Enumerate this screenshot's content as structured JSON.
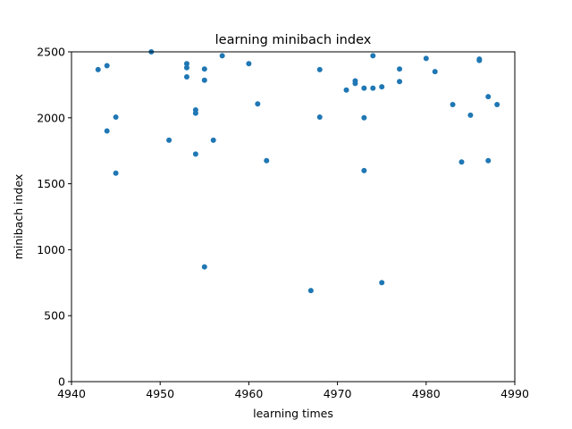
{
  "chart_data": {
    "type": "scatter",
    "title": "learning minibach index",
    "xlabel": "learning times",
    "ylabel": "minibach index",
    "xlim": [
      4940,
      4990
    ],
    "ylim": [
      0,
      2500
    ],
    "xticks": [
      4940,
      4950,
      4960,
      4970,
      4980,
      4990
    ],
    "yticks": [
      0,
      500,
      1000,
      1500,
      2000,
      2500
    ],
    "grid": false,
    "marker_color": "#1f77b4",
    "points": [
      {
        "x": 4943,
        "y": 2365
      },
      {
        "x": 4944,
        "y": 2395
      },
      {
        "x": 4944,
        "y": 1900
      },
      {
        "x": 4945,
        "y": 2005
      },
      {
        "x": 4945,
        "y": 1580
      },
      {
        "x": 4949,
        "y": 2500
      },
      {
        "x": 4951,
        "y": 1830
      },
      {
        "x": 4953,
        "y": 2410
      },
      {
        "x": 4953,
        "y": 2380
      },
      {
        "x": 4953,
        "y": 2310
      },
      {
        "x": 4954,
        "y": 2060
      },
      {
        "x": 4954,
        "y": 2035
      },
      {
        "x": 4954,
        "y": 1725
      },
      {
        "x": 4955,
        "y": 2370
      },
      {
        "x": 4955,
        "y": 2285
      },
      {
        "x": 4955,
        "y": 870
      },
      {
        "x": 4956,
        "y": 1830
      },
      {
        "x": 4957,
        "y": 2470
      },
      {
        "x": 4960,
        "y": 2410
      },
      {
        "x": 4961,
        "y": 2105
      },
      {
        "x": 4962,
        "y": 1675
      },
      {
        "x": 4967,
        "y": 690
      },
      {
        "x": 4968,
        "y": 2365
      },
      {
        "x": 4968,
        "y": 2005
      },
      {
        "x": 4971,
        "y": 2210
      },
      {
        "x": 4972,
        "y": 2280
      },
      {
        "x": 4972,
        "y": 2260
      },
      {
        "x": 4973,
        "y": 2225
      },
      {
        "x": 4973,
        "y": 2000
      },
      {
        "x": 4973,
        "y": 1600
      },
      {
        "x": 4974,
        "y": 2470
      },
      {
        "x": 4974,
        "y": 2225
      },
      {
        "x": 4975,
        "y": 2235
      },
      {
        "x": 4975,
        "y": 750
      },
      {
        "x": 4977,
        "y": 2370
      },
      {
        "x": 4977,
        "y": 2275
      },
      {
        "x": 4980,
        "y": 2450
      },
      {
        "x": 4981,
        "y": 2350
      },
      {
        "x": 4983,
        "y": 2100
      },
      {
        "x": 4984,
        "y": 1665
      },
      {
        "x": 4985,
        "y": 2020
      },
      {
        "x": 4986,
        "y": 2445
      },
      {
        "x": 4986,
        "y": 2435
      },
      {
        "x": 4987,
        "y": 2160
      },
      {
        "x": 4987,
        "y": 1675
      },
      {
        "x": 4988,
        "y": 2100
      }
    ]
  }
}
